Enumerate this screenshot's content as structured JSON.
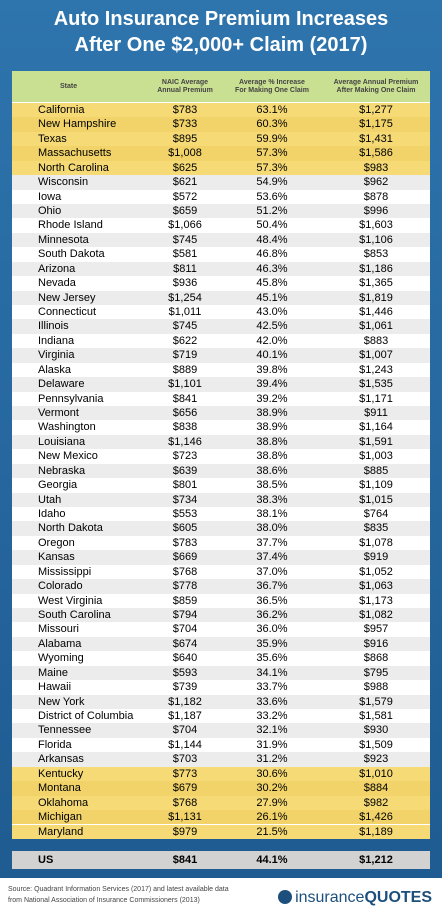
{
  "title": [
    "Auto Insurance Premium Increases",
    "After One $2,000+ Claim (2017)"
  ],
  "table": {
    "header": [
      [
        "State"
      ],
      [
        "NAIC Average",
        "Annual Premium"
      ],
      [
        "Average % Increase",
        "For Making One Claim"
      ],
      [
        "Average Annual Premium",
        "After Making One Claim"
      ]
    ],
    "highlighted_rows": [
      0,
      1,
      2,
      3,
      4,
      46,
      47,
      48,
      49,
      50
    ],
    "rows": [
      [
        "California",
        "$783",
        "63.1%",
        "$1,277"
      ],
      [
        "New Hampshire",
        "$733",
        "60.3%",
        "$1,175"
      ],
      [
        "Texas",
        "$895",
        "59.9%",
        "$1,431"
      ],
      [
        "Massachusetts",
        "$1,008",
        "57.3%",
        "$1,586"
      ],
      [
        "North Carolina",
        "$625",
        "57.3%",
        "$983"
      ],
      [
        "Wisconsin",
        "$621",
        "54.9%",
        "$962"
      ],
      [
        "Iowa",
        "$572",
        "53.6%",
        "$878"
      ],
      [
        "Ohio",
        "$659",
        "51.2%",
        "$996"
      ],
      [
        "Rhode Island",
        "$1,066",
        "50.4%",
        "$1,603"
      ],
      [
        "Minnesota",
        "$745",
        "48.4%",
        "$1,106"
      ],
      [
        "South Dakota",
        "$581",
        "46.8%",
        "$853"
      ],
      [
        "Arizona",
        "$811",
        "46.3%",
        "$1,186"
      ],
      [
        "Nevada",
        "$936",
        "45.8%",
        "$1,365"
      ],
      [
        "New Jersey",
        "$1,254",
        "45.1%",
        "$1,819"
      ],
      [
        "Connecticut",
        "$1,011",
        "43.0%",
        "$1,446"
      ],
      [
        "Illinois",
        "$745",
        "42.5%",
        "$1,061"
      ],
      [
        "Indiana",
        "$622",
        "42.0%",
        "$883"
      ],
      [
        "Virginia",
        "$719",
        "40.1%",
        "$1,007"
      ],
      [
        "Alaska",
        "$889",
        "39.8%",
        "$1,243"
      ],
      [
        "Delaware",
        "$1,101",
        "39.4%",
        "$1,535"
      ],
      [
        "Pennsylvania",
        "$841",
        "39.2%",
        "$1,171"
      ],
      [
        "Vermont",
        "$656",
        "38.9%",
        "$911"
      ],
      [
        "Washington",
        "$838",
        "38.9%",
        "$1,164"
      ],
      [
        "Louisiana",
        "$1,146",
        "38.8%",
        "$1,591"
      ],
      [
        "New Mexico",
        "$723",
        "38.8%",
        "$1,003"
      ],
      [
        "Nebraska",
        "$639",
        "38.6%",
        "$885"
      ],
      [
        "Georgia",
        "$801",
        "38.5%",
        "$1,109"
      ],
      [
        "Utah",
        "$734",
        "38.3%",
        "$1,015"
      ],
      [
        "Idaho",
        "$553",
        "38.1%",
        "$764"
      ],
      [
        "North Dakota",
        "$605",
        "38.0%",
        "$835"
      ],
      [
        "Oregon",
        "$783",
        "37.7%",
        "$1,078"
      ],
      [
        "Kansas",
        "$669",
        "37.4%",
        "$919"
      ],
      [
        "Mississippi",
        "$768",
        "37.0%",
        "$1,052"
      ],
      [
        "Colorado",
        "$778",
        "36.7%",
        "$1,063"
      ],
      [
        "West Virginia",
        "$859",
        "36.5%",
        "$1,173"
      ],
      [
        "South Carolina",
        "$794",
        "36.2%",
        "$1,082"
      ],
      [
        "Missouri",
        "$704",
        "36.0%",
        "$957"
      ],
      [
        "Alabama",
        "$674",
        "35.9%",
        "$916"
      ],
      [
        "Wyoming",
        "$640",
        "35.6%",
        "$868"
      ],
      [
        "Maine",
        "$593",
        "34.1%",
        "$795"
      ],
      [
        "Hawaii",
        "$739",
        "33.7%",
        "$988"
      ],
      [
        "New York",
        "$1,182",
        "33.6%",
        "$1,579"
      ],
      [
        "District of Columbia",
        "$1,187",
        "33.2%",
        "$1,581"
      ],
      [
        "Tennessee",
        "$704",
        "32.1%",
        "$930"
      ],
      [
        "Florida",
        "$1,144",
        "31.9%",
        "$1,509"
      ],
      [
        "Arkansas",
        "$703",
        "31.2%",
        "$923"
      ],
      [
        "Kentucky",
        "$773",
        "30.6%",
        "$1,010"
      ],
      [
        "Montana",
        "$679",
        "30.2%",
        "$884"
      ],
      [
        "Oklahoma",
        "$768",
        "27.9%",
        "$982"
      ],
      [
        "Michigan",
        "$1,131",
        "26.1%",
        "$1,426"
      ],
      [
        "Maryland",
        "$979",
        "21.5%",
        "$1,189"
      ]
    ],
    "total": [
      "US",
      "$841",
      "44.1%",
      "$1,212"
    ]
  },
  "footer": {
    "source": [
      "Source: Quadrant Information Services (2017) and latest available data",
      "from National Association of Insurance Commissioners (2013)"
    ],
    "logo": [
      "insurance",
      "QUOTES"
    ]
  }
}
